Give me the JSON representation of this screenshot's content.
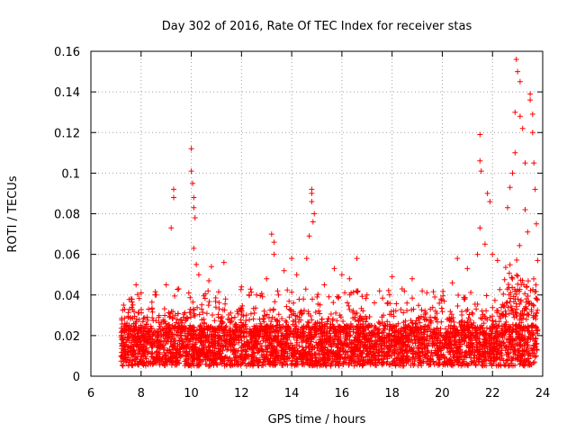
{
  "chart_data": {
    "type": "scatter",
    "title": "Day 302 of 2016, Rate Of TEC Index for receiver stas",
    "xlabel": "GPS time / hours",
    "ylabel": "ROTI / TECUs",
    "xlim": [
      6,
      24
    ],
    "ylim": [
      0,
      0.16
    ],
    "x_ticks": [
      6,
      8,
      10,
      12,
      14,
      16,
      18,
      20,
      22,
      24
    ],
    "x_tick_labels": [
      "6",
      "8",
      "10",
      "12",
      "14",
      "16",
      "18",
      "20",
      "22",
      "24"
    ],
    "y_ticks": [
      0,
      0.02,
      0.04,
      0.06,
      0.08,
      0.1,
      0.12,
      0.14,
      0.16
    ],
    "y_tick_labels": [
      "0",
      "0.02",
      "0.04",
      "0.06",
      "0.08",
      "0.1",
      "0.12",
      "0.14",
      "0.16"
    ],
    "grid": true,
    "marker": "+",
    "color": "#ff0000",
    "series": [
      {
        "name": "ROTI",
        "x_range": [
          7.2,
          23.8
        ],
        "typical_band": [
          0.005,
          0.025
        ],
        "notable_points": [
          [
            7.3,
            0.035
          ],
          [
            7.6,
            0.038
          ],
          [
            7.8,
            0.045
          ],
          [
            8.3,
            0.033
          ],
          [
            8.6,
            0.04
          ],
          [
            9.0,
            0.045
          ],
          [
            9.2,
            0.073
          ],
          [
            9.3,
            0.092
          ],
          [
            9.3,
            0.088
          ],
          [
            9.5,
            0.043
          ],
          [
            9.9,
            0.041
          ],
          [
            10.0,
            0.112
          ],
          [
            10.0,
            0.101
          ],
          [
            10.05,
            0.095
          ],
          [
            10.1,
            0.088
          ],
          [
            10.1,
            0.083
          ],
          [
            10.15,
            0.078
          ],
          [
            10.1,
            0.063
          ],
          [
            10.2,
            0.055
          ],
          [
            10.3,
            0.05
          ],
          [
            10.7,
            0.047
          ],
          [
            10.8,
            0.054
          ],
          [
            11.3,
            0.056
          ],
          [
            12.0,
            0.044
          ],
          [
            12.6,
            0.04
          ],
          [
            13.0,
            0.048
          ],
          [
            13.2,
            0.07
          ],
          [
            13.3,
            0.066
          ],
          [
            13.3,
            0.06
          ],
          [
            13.7,
            0.052
          ],
          [
            14.0,
            0.058
          ],
          [
            14.2,
            0.05
          ],
          [
            14.6,
            0.058
          ],
          [
            14.7,
            0.069
          ],
          [
            14.8,
            0.092
          ],
          [
            14.8,
            0.09
          ],
          [
            14.8,
            0.086
          ],
          [
            14.9,
            0.08
          ],
          [
            14.85,
            0.076
          ],
          [
            15.3,
            0.045
          ],
          [
            15.7,
            0.053
          ],
          [
            16.0,
            0.05
          ],
          [
            16.3,
            0.048
          ],
          [
            16.6,
            0.058
          ],
          [
            17.0,
            0.04
          ],
          [
            17.5,
            0.042
          ],
          [
            18.0,
            0.049
          ],
          [
            18.4,
            0.043
          ],
          [
            18.8,
            0.048
          ],
          [
            19.2,
            0.042
          ],
          [
            19.7,
            0.039
          ],
          [
            20.4,
            0.046
          ],
          [
            20.6,
            0.058
          ],
          [
            21.0,
            0.053
          ],
          [
            21.4,
            0.06
          ],
          [
            21.5,
            0.119
          ],
          [
            21.5,
            0.106
          ],
          [
            21.55,
            0.101
          ],
          [
            21.5,
            0.073
          ],
          [
            21.7,
            0.065
          ],
          [
            21.8,
            0.09
          ],
          [
            21.9,
            0.086
          ],
          [
            22.0,
            0.06
          ],
          [
            22.2,
            0.057
          ],
          [
            22.6,
            0.083
          ],
          [
            22.7,
            0.093
          ],
          [
            22.8,
            0.1
          ],
          [
            22.9,
            0.11
          ],
          [
            22.9,
            0.13
          ],
          [
            22.95,
            0.156
          ],
          [
            23.0,
            0.15
          ],
          [
            23.1,
            0.145
          ],
          [
            23.1,
            0.128
          ],
          [
            23.2,
            0.122
          ],
          [
            23.3,
            0.105
          ],
          [
            23.3,
            0.082
          ],
          [
            23.4,
            0.071
          ],
          [
            23.5,
            0.139
          ],
          [
            23.5,
            0.136
          ],
          [
            23.6,
            0.129
          ],
          [
            23.6,
            0.12
          ],
          [
            23.65,
            0.105
          ],
          [
            23.7,
            0.092
          ],
          [
            23.75,
            0.075
          ],
          [
            23.8,
            0.057
          ]
        ]
      }
    ]
  }
}
